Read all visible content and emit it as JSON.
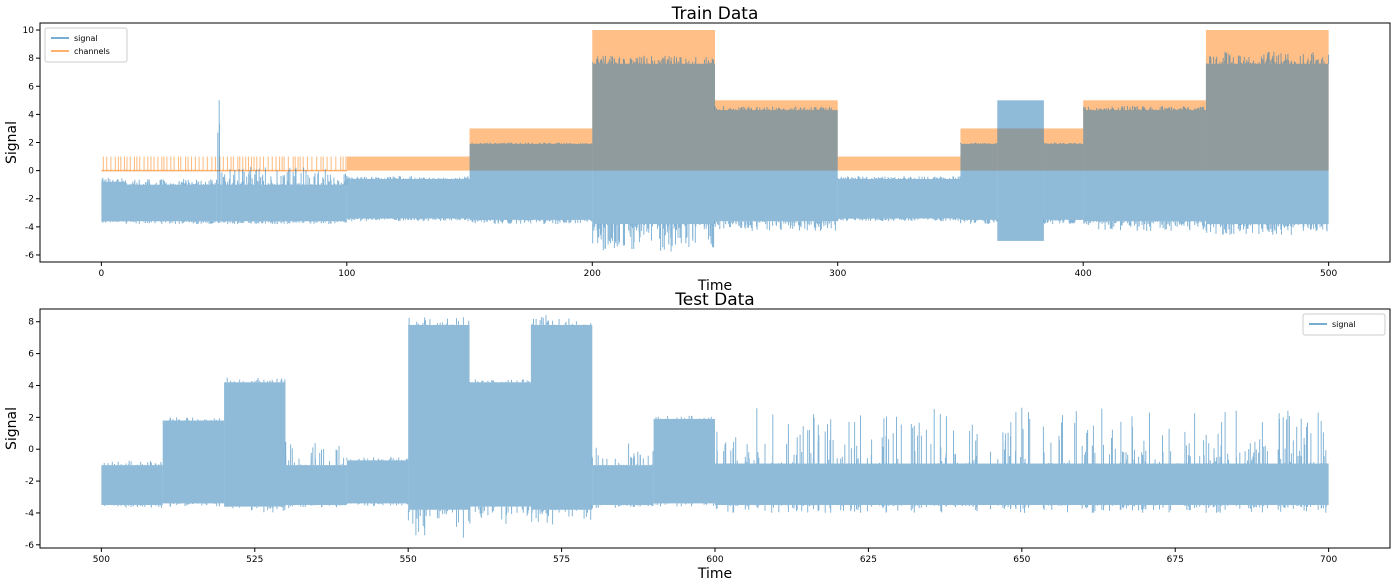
{
  "chart_data": [
    {
      "type": "area",
      "title": "Train Data",
      "xlabel": "Time",
      "ylabel": "Signal",
      "xlim": [
        -25,
        525
      ],
      "ylim": [
        -6.5,
        10.5
      ],
      "xticks": [
        0,
        100,
        200,
        300,
        400,
        500
      ],
      "yticks": [
        -6,
        -4,
        -2,
        0,
        2,
        4,
        6,
        8,
        10
      ],
      "legend_position": "top-left",
      "grid": false,
      "colors": {
        "signal": "#1f77b4",
        "channels": "#ff7f0e"
      },
      "series": [
        {
          "name": "signal",
          "segments": [
            {
              "x": [
                0,
                10
              ],
              "low": -3.6,
              "high": -0.8,
              "min": -3.7,
              "max": -0.5
            },
            {
              "x": [
                10,
                47
              ],
              "low": -3.6,
              "high": -1.0,
              "min": -3.8,
              "max": -0.6
            },
            {
              "x": [
                47,
                49
              ],
              "low": -3.6,
              "high": -1.0,
              "min": -3.8,
              "max": 5.0
            },
            {
              "x": [
                49,
                100
              ],
              "low": -3.6,
              "high": -1.0,
              "min": -3.8,
              "max": 0.3
            },
            {
              "x": [
                100,
                150
              ],
              "low": -3.4,
              "high": -0.6,
              "min": -3.6,
              "max": -0.4
            },
            {
              "x": [
                150,
                200
              ],
              "low": -3.5,
              "high": 1.9,
              "min": -3.8,
              "max": 2.0
            },
            {
              "x": [
                200,
                250
              ],
              "low": -3.8,
              "high": 7.6,
              "min": -5.8,
              "max": 8.2
            },
            {
              "x": [
                250,
                300
              ],
              "low": -3.6,
              "high": 4.3,
              "min": -4.3,
              "max": 4.6
            },
            {
              "x": [
                300,
                350
              ],
              "low": -3.4,
              "high": -0.6,
              "min": -3.6,
              "max": -0.4
            },
            {
              "x": [
                350,
                365
              ],
              "low": -3.5,
              "high": 1.9,
              "min": -3.8,
              "max": 2.0
            },
            {
              "x": [
                365,
                384
              ],
              "low": -5.0,
              "high": 5.0,
              "min": -5.0,
              "max": 5.0
            },
            {
              "x": [
                384,
                400
              ],
              "low": -3.5,
              "high": 1.9,
              "min": -3.8,
              "max": 2.0
            },
            {
              "x": [
                400,
                450
              ],
              "low": -3.6,
              "high": 4.3,
              "min": -4.3,
              "max": 4.6
            },
            {
              "x": [
                450,
                500
              ],
              "low": -3.8,
              "high": 7.6,
              "min": -4.6,
              "max": 8.5
            }
          ]
        },
        {
          "name": "channels",
          "segments": [
            {
              "x": [
                0,
                100
              ],
              "value": 1,
              "flicker": true
            },
            {
              "x": [
                100,
                150
              ],
              "value": 1
            },
            {
              "x": [
                150,
                200
              ],
              "value": 3
            },
            {
              "x": [
                200,
                250
              ],
              "value": 10
            },
            {
              "x": [
                250,
                300
              ],
              "value": 5
            },
            {
              "x": [
                300,
                350
              ],
              "value": 1
            },
            {
              "x": [
                350,
                400
              ],
              "value": 3
            },
            {
              "x": [
                400,
                450
              ],
              "value": 5
            },
            {
              "x": [
                450,
                500
              ],
              "value": 10
            }
          ]
        }
      ]
    },
    {
      "type": "area",
      "title": "Test Data",
      "xlabel": "Time",
      "ylabel": "Signal",
      "xlim": [
        490,
        710
      ],
      "ylim": [
        -6.2,
        8.8
      ],
      "xticks": [
        500,
        525,
        550,
        575,
        600,
        625,
        650,
        675,
        700
      ],
      "yticks": [
        -6,
        -4,
        -2,
        0,
        2,
        4,
        6,
        8
      ],
      "legend_position": "top-right",
      "grid": false,
      "colors": {
        "signal": "#1f77b4"
      },
      "series": [
        {
          "name": "signal",
          "segments": [
            {
              "x": [
                500,
                510
              ],
              "low": -3.5,
              "high": -1.0,
              "min": -3.7,
              "max": -0.7
            },
            {
              "x": [
                510,
                520
              ],
              "low": -3.4,
              "high": 1.8,
              "min": -3.6,
              "max": 2.0
            },
            {
              "x": [
                520,
                530
              ],
              "low": -3.6,
              "high": 4.2,
              "min": -4.0,
              "max": 4.5
            },
            {
              "x": [
                530,
                540
              ],
              "low": -3.5,
              "high": -1.0,
              "min": -3.7,
              "max": 0.5
            },
            {
              "x": [
                540,
                550
              ],
              "low": -3.4,
              "high": -0.7,
              "min": -3.6,
              "max": -0.5
            },
            {
              "x": [
                550,
                560
              ],
              "low": -3.8,
              "high": 7.8,
              "min": -5.6,
              "max": 8.3
            },
            {
              "x": [
                560,
                570
              ],
              "low": -3.6,
              "high": 4.2,
              "min": -4.7,
              "max": 4.4
            },
            {
              "x": [
                570,
                580
              ],
              "low": -3.8,
              "high": 7.8,
              "min": -4.8,
              "max": 8.5
            },
            {
              "x": [
                580,
                590
              ],
              "low": -3.5,
              "high": -1.0,
              "min": -3.7,
              "max": 0.5
            },
            {
              "x": [
                590,
                600
              ],
              "low": -3.4,
              "high": 1.9,
              "min": -3.6,
              "max": 2.1
            },
            {
              "x": [
                600,
                700
              ],
              "low": -3.5,
              "high": -0.9,
              "min": -4.0,
              "max": 2.6
            }
          ]
        }
      ]
    }
  ]
}
